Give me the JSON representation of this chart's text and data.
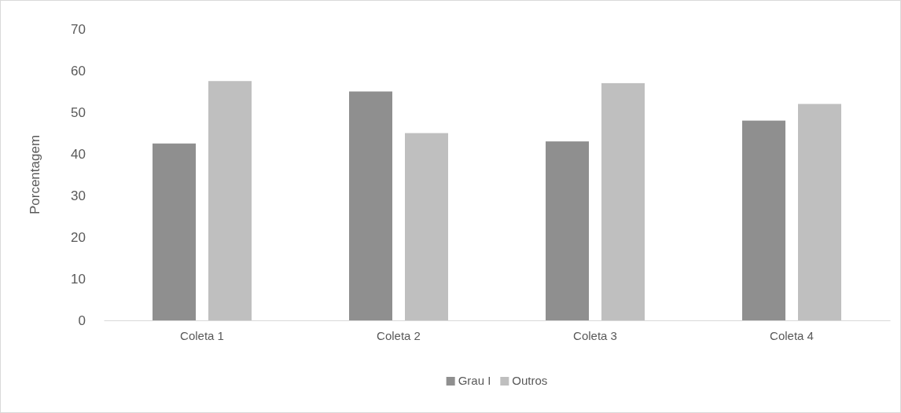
{
  "chart_data": {
    "type": "bar",
    "ylabel": "Porcentagem",
    "categories": [
      "Coleta 1",
      "Coleta 2",
      "Coleta 3",
      "Coleta 4"
    ],
    "series": [
      {
        "name": "Grau I",
        "color": "#8f8f8f",
        "values": [
          42.5,
          55,
          43,
          48
        ]
      },
      {
        "name": "Outros",
        "color": "#bfbfbf",
        "values": [
          57.5,
          45,
          57,
          52
        ]
      }
    ],
    "ylim": [
      0,
      70
    ],
    "yticks": [
      0,
      10,
      20,
      30,
      40,
      50,
      60,
      70
    ],
    "grid": false,
    "legend": "bottom"
  }
}
